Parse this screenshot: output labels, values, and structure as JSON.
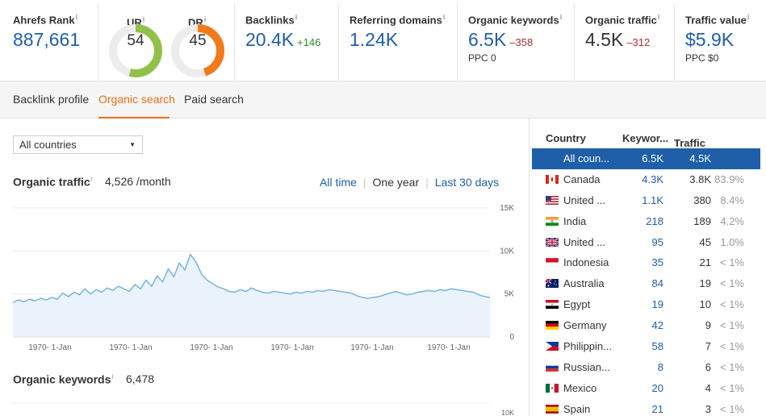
{
  "metrics": {
    "ahrefs_rank": {
      "label": "Ahrefs Rank",
      "value": "887,661"
    },
    "ur": {
      "label": "UR",
      "value": "54",
      "level": 54,
      "color": "#92c14a"
    },
    "dr": {
      "label": "DR",
      "value": "45",
      "level": 45,
      "color": "#f27a1a"
    },
    "backlinks": {
      "label": "Backlinks",
      "value": "20.4K",
      "delta": "+146"
    },
    "referring_domains": {
      "label": "Referring domains",
      "value": "1.24K"
    },
    "organic_keywords": {
      "label": "Organic keywords",
      "value": "6.5K",
      "delta": "–358",
      "sub": "PPC 0"
    },
    "organic_traffic": {
      "label": "Organic traffic",
      "value": "4.5K",
      "delta": "–312"
    },
    "traffic_value": {
      "label": "Traffic value",
      "value": "$5.9K",
      "sub": "PPC $0"
    },
    "info_mark": "i"
  },
  "tabs": [
    "Backlink profile",
    "Organic search",
    "Paid search"
  ],
  "active_tab": "Organic search",
  "country_select": "All countries",
  "organic_traffic": {
    "title": "Organic traffic",
    "value": "4,526 /month",
    "ranges": [
      "All time",
      "One year",
      "Last 30 days"
    ],
    "selected_range": "One year"
  },
  "organic_keywords": {
    "title": "Organic keywords",
    "value": "6,478"
  },
  "chart_data": {
    "type": "area",
    "title": "",
    "xlabel": "",
    "ylabel": "",
    "x_tick_labels": [
      "1970- 1-Jan",
      "1970- 1-Jan",
      "1970- 1-Jan",
      "1970- 1-Jan",
      "1970- 1-Jan",
      "1970- 1-Jan"
    ],
    "y_tick_labels": [
      "15K",
      "10K",
      "5K",
      "0"
    ],
    "ylim": [
      0,
      15000
    ],
    "grid": true,
    "series_color": "#78b3e0",
    "values": [
      4000,
      4300,
      4100,
      4400,
      4200,
      4500,
      4300,
      4600,
      4400,
      5100,
      4700,
      5200,
      4900,
      5600,
      5000,
      5500,
      5200,
      5700,
      5400,
      5900,
      5600,
      5300,
      6100,
      5600,
      6600,
      5900,
      7100,
      6400,
      7900,
      7000,
      8600,
      7800,
      9600,
      8700,
      7300,
      6600,
      6200,
      5800,
      5600,
      5300,
      5200,
      5500,
      5300,
      5700,
      5400,
      5200,
      5100,
      5300,
      5200,
      5100,
      5000,
      5200,
      5100,
      5300,
      5200,
      5400,
      5300,
      5500,
      5400,
      5300,
      5200,
      5100,
      4800,
      4600,
      4500,
      4600,
      4700,
      4900,
      5100,
      5300,
      5100,
      4900,
      5000,
      5200,
      5300,
      5400,
      5300,
      5500,
      5400,
      5600,
      5500,
      5400,
      5300,
      5200,
      4900,
      4700,
      4600
    ]
  },
  "keywords_chart": {
    "y_tick_labels": [
      "10K"
    ]
  },
  "country_table": {
    "headers": [
      "Country",
      "Keywor...",
      "Traffic"
    ],
    "rows": [
      {
        "flag": "none",
        "country": "All coun...",
        "keywords": "6.5K",
        "traffic": "4.5K",
        "pct": ""
      },
      {
        "flag": "ca",
        "country": "Canada",
        "keywords": "4.3K",
        "traffic": "3.8K",
        "pct": "83.9%"
      },
      {
        "flag": "us",
        "country": "United ...",
        "keywords": "1.1K",
        "traffic": "380",
        "pct": "8.4%"
      },
      {
        "flag": "in",
        "country": "India",
        "keywords": "218",
        "traffic": "189",
        "pct": "4.2%"
      },
      {
        "flag": "gb",
        "country": "United ...",
        "keywords": "95",
        "traffic": "45",
        "pct": "1.0%"
      },
      {
        "flag": "id",
        "country": "Indonesia",
        "keywords": "35",
        "traffic": "21",
        "pct": "< 1%"
      },
      {
        "flag": "au",
        "country": "Australia",
        "keywords": "84",
        "traffic": "19",
        "pct": "< 1%"
      },
      {
        "flag": "eg",
        "country": "Egypt",
        "keywords": "19",
        "traffic": "10",
        "pct": "< 1%"
      },
      {
        "flag": "de",
        "country": "Germany",
        "keywords": "42",
        "traffic": "9",
        "pct": "< 1%"
      },
      {
        "flag": "ph",
        "country": "Philippin...",
        "keywords": "58",
        "traffic": "7",
        "pct": "< 1%"
      },
      {
        "flag": "ru",
        "country": "Russian...",
        "keywords": "8",
        "traffic": "6",
        "pct": "< 1%"
      },
      {
        "flag": "mx",
        "country": "Mexico",
        "keywords": "20",
        "traffic": "4",
        "pct": "< 1%"
      },
      {
        "flag": "es",
        "country": "Spain",
        "keywords": "21",
        "traffic": "3",
        "pct": "< 1%"
      }
    ]
  }
}
